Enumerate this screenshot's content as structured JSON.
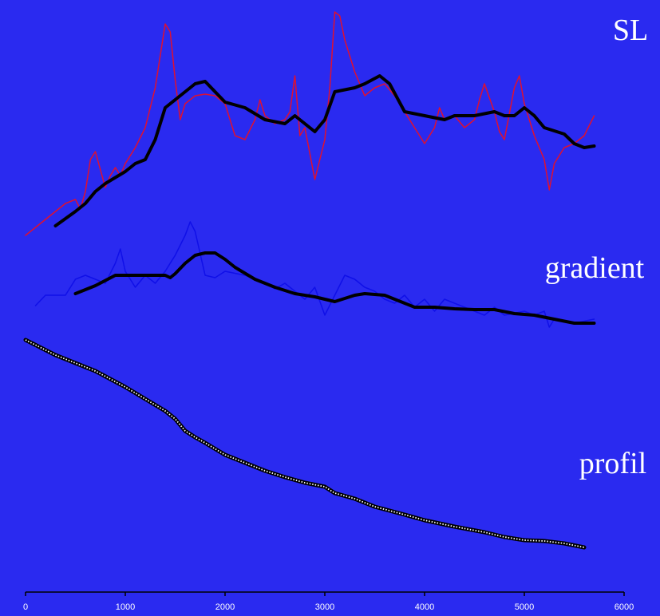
{
  "chart_data": {
    "type": "line",
    "xlim": [
      0,
      6000
    ],
    "xticks": [
      0,
      1000,
      2000,
      3000,
      4000,
      5000,
      6000
    ],
    "ylim": [
      0,
      742
    ],
    "series": [
      {
        "name": "SL",
        "color": "#e01030",
        "width": 1.5,
        "x": [
          0,
          200,
          400,
          500,
          550,
          600,
          650,
          700,
          800,
          850,
          900,
          950,
          1000,
          1100,
          1200,
          1300,
          1400,
          1450,
          1500,
          1550,
          1600,
          1700,
          1800,
          1900,
          2000,
          2100,
          2200,
          2300,
          2350,
          2400,
          2500,
          2600,
          2650,
          2700,
          2750,
          2800,
          2900,
          3000,
          3050,
          3100,
          3150,
          3200,
          3300,
          3400,
          3500,
          3600,
          3700,
          3800,
          3900,
          4000,
          4100,
          4150,
          4200,
          4300,
          4400,
          4500,
          4550,
          4600,
          4700,
          4750,
          4800,
          4900,
          4950,
          5000,
          5100,
          5200,
          5250,
          5300,
          5400,
          5500,
          5600,
          5700
        ],
        "values": [
          447,
          467,
          487,
          492,
          480,
          502,
          542,
          552,
          507,
          522,
          532,
          522,
          537,
          557,
          582,
          632,
          712,
          702,
          642,
          592,
          612,
          622,
          624,
          622,
          612,
          572,
          567,
          592,
          617,
          597,
          587,
          592,
          602,
          647,
          572,
          582,
          517,
          567,
          632,
          727,
          722,
          692,
          652,
          622,
          632,
          637,
          622,
          602,
          582,
          562,
          582,
          607,
          592,
          597,
          582,
          592,
          617,
          637,
          602,
          577,
          567,
          632,
          647,
          612,
          572,
          542,
          504,
          537,
          557,
          562,
          572,
          597
        ]
      },
      {
        "color": "#000000",
        "width": 4,
        "x": [
          300,
          500,
          600,
          700,
          800,
          1000,
          1100,
          1200,
          1300,
          1400,
          1500,
          1600,
          1700,
          1800,
          1900,
          2000,
          2200,
          2400,
          2600,
          2700,
          2800,
          2900,
          3000,
          3100,
          3300,
          3400,
          3550,
          3650,
          3800,
          4000,
          4200,
          4300,
          4500,
          4700,
          4800,
          4900,
          5000,
          5100,
          5200,
          5400,
          5500,
          5600,
          5700
        ],
        "values": [
          459,
          477,
          487,
          502,
          512,
          527,
          537,
          542,
          567,
          607,
          617,
          627,
          637,
          640,
          627,
          614,
          607,
          592,
          587,
          597,
          587,
          577,
          592,
          627,
          632,
          637,
          647,
          637,
          602,
          597,
          592,
          597,
          597,
          602,
          597,
          597,
          607,
          597,
          582,
          574,
          562,
          557,
          559
        ]
      },
      {
        "name": "gradient",
        "color": "#1010e8",
        "width": 1.5,
        "x": [
          100,
          200,
          400,
          500,
          600,
          700,
          800,
          900,
          950,
          1000,
          1100,
          1200,
          1300,
          1400,
          1500,
          1600,
          1650,
          1700,
          1800,
          1900,
          2000,
          2200,
          2400,
          2500,
          2600,
          2700,
          2800,
          2900,
          3000,
          3100,
          3200,
          3300,
          3400,
          3500,
          3600,
          3700,
          3800,
          3900,
          4000,
          4100,
          4200,
          4400,
          4600,
          4700,
          4800,
          5000,
          5100,
          5200,
          5250,
          5300,
          5400,
          5500,
          5700
        ],
        "values": [
          359,
          372,
          372,
          392,
          397,
          392,
          387,
          412,
          430,
          402,
          382,
          397,
          387,
          402,
          422,
          447,
          464,
          452,
          397,
          394,
          402,
          397,
          387,
          380,
          387,
          377,
          367,
          382,
          347,
          372,
          397,
          392,
          382,
          377,
          367,
          362,
          372,
          357,
          367,
          352,
          367,
          357,
          347,
          357,
          347,
          352,
          347,
          352,
          332,
          342,
          339,
          337,
          342
        ]
      },
      {
        "color": "#000000",
        "width": 4,
        "x": [
          500,
          700,
          900,
          1100,
          1300,
          1400,
          1450,
          1500,
          1600,
          1700,
          1800,
          1900,
          2000,
          2100,
          2300,
          2500,
          2700,
          2900,
          3100,
          3300,
          3400,
          3600,
          3700,
          3900,
          4100,
          4300,
          4500,
          4700,
          4900,
          5100,
          5300,
          5500,
          5700
        ],
        "values": [
          374,
          384,
          397,
          397,
          397,
          397,
          394,
          399,
          412,
          422,
          425,
          425,
          417,
          407,
          392,
          382,
          374,
          370,
          364,
          372,
          374,
          372,
          367,
          357,
          357,
          355,
          354,
          354,
          349,
          347,
          342,
          337,
          337
        ]
      },
      {
        "name": "profil",
        "color": "#000000",
        "width": 5,
        "dotted": true,
        "x": [
          0,
          300,
          500,
          700,
          1000,
          1200,
          1400,
          1500,
          1600,
          1700,
          1800,
          2000,
          2200,
          2400,
          2600,
          2800,
          3000,
          3100,
          3300,
          3500,
          3800,
          4000,
          4300,
          4600,
          4800,
          5000,
          5200,
          5400,
          5600
        ],
        "values": [
          316,
          297,
          287,
          277,
          257,
          242,
          227,
          217,
          202,
          194,
          187,
          172,
          162,
          152,
          144,
          137,
          132,
          124,
          117,
          107,
          97,
          90,
          82,
          75,
          69,
          65,
          64,
          61,
          56
        ]
      }
    ]
  }
}
